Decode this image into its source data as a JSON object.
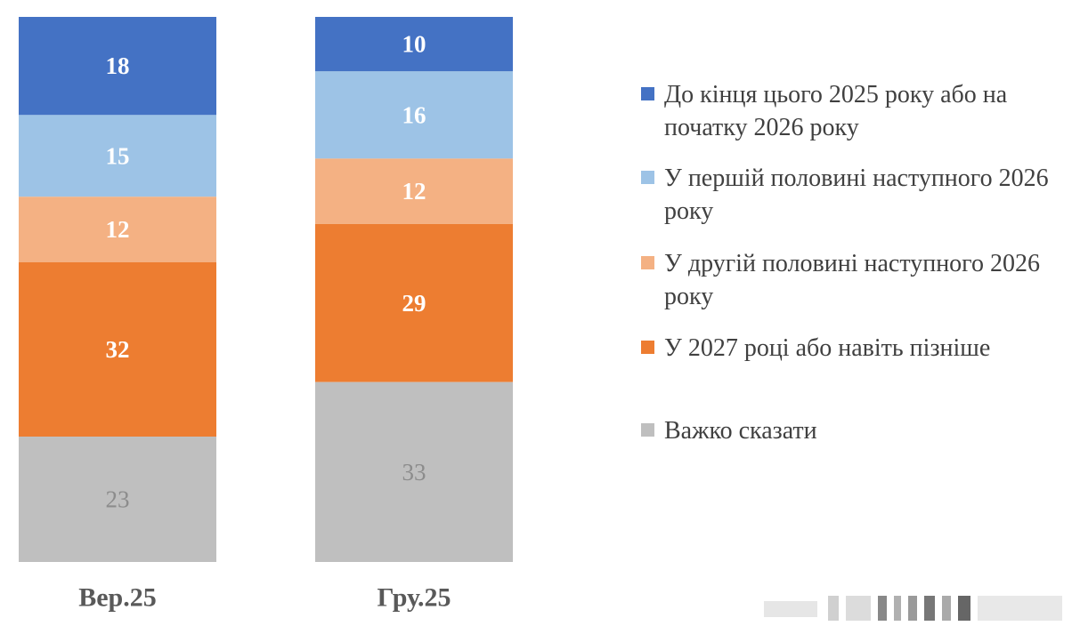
{
  "chart_data": {
    "type": "stacked-bar",
    "categories": [
      "Вер.25",
      "Гру.25"
    ],
    "ylim": [
      0,
      100
    ],
    "legend_position": "right",
    "grid": false,
    "series": [
      {
        "name": "До кінця цього 2025 року або на початку 2026 року",
        "color": "#4472c4",
        "label_color": "#ffffff",
        "label_bold": true,
        "values": [
          18,
          10
        ]
      },
      {
        "name": "У першій половині наступного 2026 року",
        "color": "#9dc3e6",
        "label_color": "#ffffff",
        "label_bold": true,
        "values": [
          15,
          16
        ]
      },
      {
        "name": "У другій половині наступного 2026 року",
        "color": "#f4b183",
        "label_color": "#ffffff",
        "label_bold": true,
        "values": [
          12,
          12
        ]
      },
      {
        "name": "У 2027 році або навіть пізніше",
        "color": "#ed7d31",
        "label_color": "#ffffff",
        "label_bold": true,
        "values": [
          32,
          29
        ]
      },
      {
        "name": "Важко сказати",
        "color": "#bfbfbf",
        "label_color": "#8c8c8c",
        "label_bold": false,
        "values": [
          23,
          33
        ]
      }
    ]
  }
}
